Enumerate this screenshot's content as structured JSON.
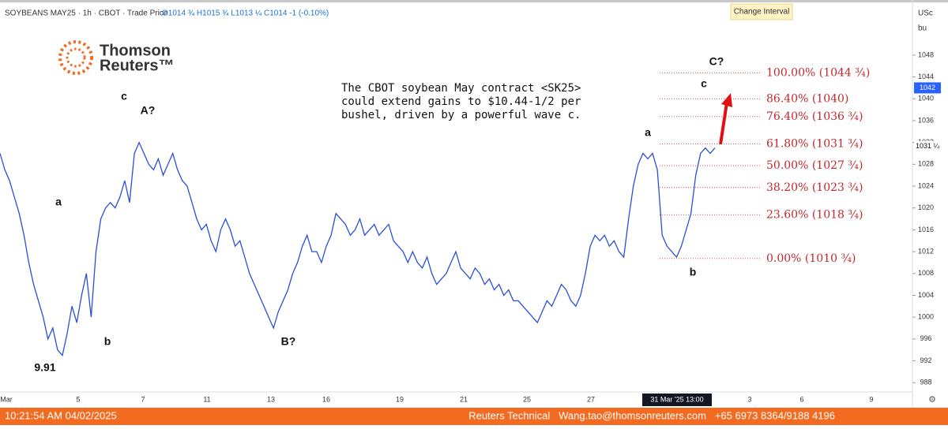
{
  "chart_data": {
    "type": "line",
    "header": "SOYBEANS MAY25 · 1h · CBOT · Trade Price",
    "ohlc": "O1014 ¾ H1015 ¾ L1013 ¼ C1014 -1 (-0.10%)",
    "tooltip": "Change Interval",
    "unit_top": "USc",
    "unit_bottom": "bu",
    "logo": "Thomson Reuters™",
    "logo_lines": [
      "Thomson",
      "Reuters™"
    ],
    "commentary": [
      "The CBOT soybean May contract <SK25>",
      "could extend gains to $10.44-1/2 per",
      "bushel, driven by a powerful wave c."
    ],
    "color": "#2a4fd6",
    "values": [
      1030,
      1027,
      1025,
      1022,
      1019,
      1015,
      1010,
      1006,
      1003,
      1000,
      996,
      998,
      994,
      993,
      997,
      1002,
      999,
      1004,
      1008,
      1000,
      1012,
      1018,
      1020,
      1021,
      1020,
      1022,
      1025,
      1021,
      1030,
      1032,
      1030,
      1028,
      1027,
      1029,
      1026,
      1028,
      1030,
      1027,
      1025,
      1024,
      1021,
      1018,
      1016,
      1017,
      1014,
      1012,
      1016,
      1018,
      1016,
      1013,
      1014,
      1011,
      1008,
      1006,
      1004,
      1002,
      1000,
      998,
      1001,
      1003,
      1005,
      1008,
      1010,
      1013,
      1015,
      1012,
      1012,
      1010,
      1013,
      1015,
      1019,
      1018,
      1017,
      1015,
      1016,
      1018,
      1015,
      1016,
      1017,
      1015,
      1016,
      1017,
      1014,
      1013,
      1012,
      1010,
      1012,
      1010,
      1009,
      1011,
      1008,
      1006,
      1007,
      1008,
      1010,
      1012,
      1009,
      1008,
      1007,
      1009,
      1008,
      1006,
      1007,
      1005,
      1006,
      1004,
      1005,
      1003,
      1003,
      1002,
      1001,
      1000,
      999,
      1001,
      1003,
      1002,
      1004,
      1006,
      1005,
      1003,
      1002,
      1004,
      1008,
      1013,
      1015,
      1014,
      1015,
      1013,
      1014,
      1012,
      1011,
      1018,
      1024,
      1028,
      1030,
      1029,
      1030,
      1027,
      1015,
      1013,
      1012,
      1011,
      1013,
      1016,
      1019,
      1026,
      1030,
      1031,
      1030,
      1031
    ],
    "x_labels": [
      "Mar",
      "5",
      "7",
      "11",
      "13",
      "16",
      "19",
      "21",
      "25",
      "27",
      "31 Mar '25  13:00",
      "3",
      "6",
      "9"
    ],
    "ylim": [
      986.3,
      1058.1
    ],
    "yticks": [
      988,
      992,
      996,
      1000,
      1004,
      1008,
      1012,
      1016,
      1020,
      1024,
      1028,
      1032,
      1036,
      1040,
      1044,
      1048
    ],
    "price_tags": [
      {
        "value": 1042,
        "label": "1042"
      },
      {
        "value": 1031.25,
        "label": "1031 ¼"
      }
    ],
    "fib_levels": [
      {
        "value": 1044.75,
        "label": "100.00% (1044 ¾)"
      },
      {
        "value": 1040,
        "label": "86.40% (1040)"
      },
      {
        "value": 1036.75,
        "label": "76.40% (1036 ¾)"
      },
      {
        "value": 1031.75,
        "label": "61.80% (1031 ¾)"
      },
      {
        "value": 1027.75,
        "label": "50.00% (1027 ¾)"
      },
      {
        "value": 1023.75,
        "label": "38.20% (1023 ¾)"
      },
      {
        "value": 1018.75,
        "label": "23.60% (1018 ¾)"
      },
      {
        "value": 1010.75,
        "label": "0.00% (1010 ¾)"
      }
    ],
    "wave_labels": [
      "c",
      "A?",
      "a",
      "b",
      "9.91",
      "B?",
      "a",
      "b",
      "c",
      "C?"
    ],
    "footer_time": "10:21:54 AM 04/02/2025",
    "footer_contact": "Reuters Technical   Wang.tao@thomsonreuters.com   +65 6973 8364/9188 4196"
  }
}
